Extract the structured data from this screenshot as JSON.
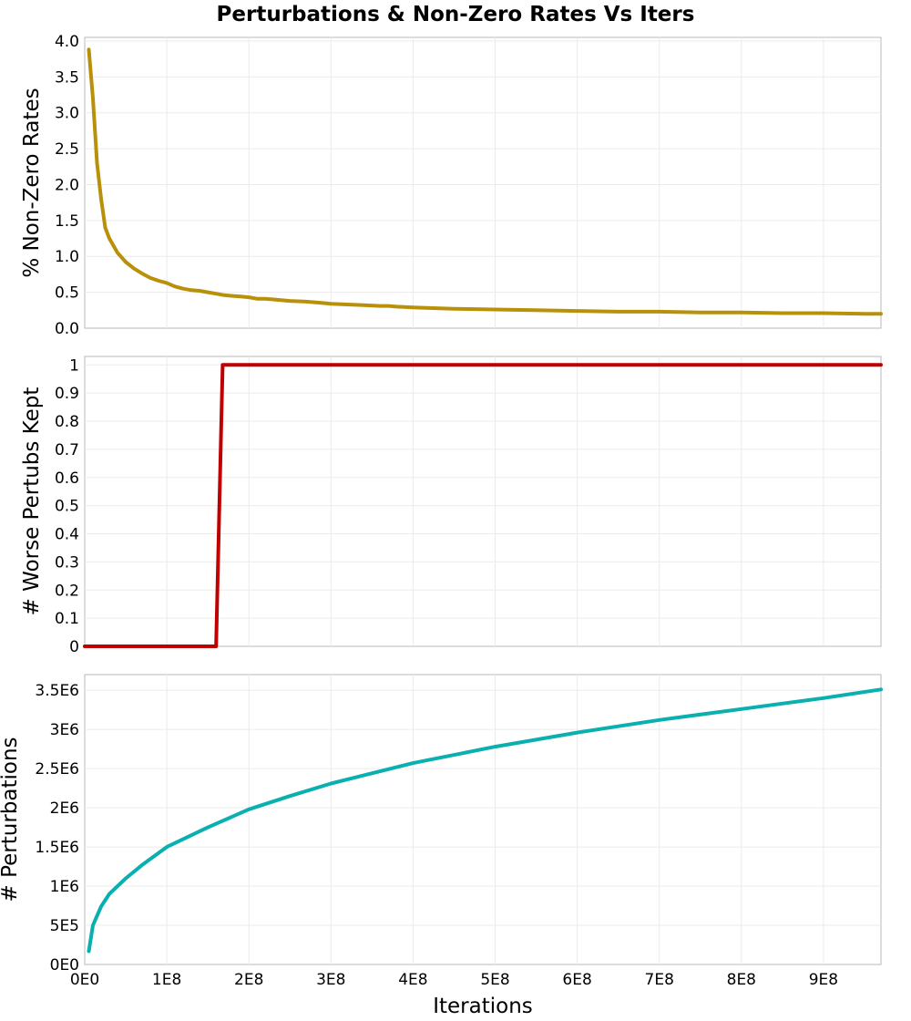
{
  "chart_data": {
    "type": "line",
    "title": "Perturbations & Non-Zero Rates Vs Iters",
    "shared_x": {
      "label": "Iterations",
      "range": [
        0,
        970000000
      ],
      "ticks": [
        0,
        100000000,
        200000000,
        300000000,
        400000000,
        500000000,
        600000000,
        700000000,
        800000000,
        900000000
      ],
      "tick_labels": [
        "0E0",
        "1E8",
        "2E8",
        "3E8",
        "4E8",
        "5E8",
        "6E8",
        "7E8",
        "8E8",
        "9E8"
      ]
    },
    "panels": [
      {
        "ylabel": "% Non-Zero Rates",
        "ylim": [
          0,
          4.05
        ],
        "yticks": [
          0,
          0.5,
          1.0,
          1.5,
          2.0,
          2.5,
          3.0,
          3.5,
          4.0
        ],
        "ytick_labels": [
          "0.0",
          "0.5",
          "1.0",
          "1.5",
          "2.0",
          "2.5",
          "3.0",
          "3.5",
          "4.0"
        ],
        "color": "#b8900a",
        "x": [
          5000000,
          10000000,
          15000000,
          20000000,
          25000000,
          30000000,
          40000000,
          50000000,
          60000000,
          70000000,
          80000000,
          90000000,
          100000000,
          110000000,
          120000000,
          130000000,
          140000000,
          150000000,
          160000000,
          170000000,
          180000000,
          190000000,
          200000000,
          210000000,
          220000000,
          230000000,
          250000000,
          270000000,
          280000000,
          290000000,
          300000000,
          320000000,
          340000000,
          360000000,
          370000000,
          380000000,
          400000000,
          420000000,
          450000000,
          500000000,
          550000000,
          600000000,
          650000000,
          700000000,
          750000000,
          800000000,
          850000000,
          900000000,
          950000000,
          970000000
        ],
        "values": [
          3.88,
          3.2,
          2.3,
          1.8,
          1.4,
          1.25,
          1.05,
          0.92,
          0.83,
          0.76,
          0.7,
          0.66,
          0.63,
          0.58,
          0.55,
          0.53,
          0.52,
          0.5,
          0.48,
          0.46,
          0.45,
          0.44,
          0.43,
          0.41,
          0.41,
          0.4,
          0.38,
          0.37,
          0.36,
          0.35,
          0.34,
          0.33,
          0.32,
          0.31,
          0.31,
          0.3,
          0.29,
          0.28,
          0.27,
          0.26,
          0.25,
          0.24,
          0.23,
          0.23,
          0.22,
          0.22,
          0.21,
          0.21,
          0.2,
          0.2
        ]
      },
      {
        "ylabel": "# Worse Pertubs Kept",
        "ylim": [
          0,
          1.03
        ],
        "yticks": [
          0,
          0.1,
          0.2,
          0.3,
          0.4,
          0.5,
          0.6,
          0.7,
          0.8,
          0.9,
          1
        ],
        "ytick_labels": [
          "0",
          "0.1",
          "0.2",
          "0.3",
          "0.4",
          "0.5",
          "0.6",
          "0.7",
          "0.8",
          "0.9",
          "1"
        ],
        "color": "#c00000",
        "x": [
          0,
          160000000,
          168000000,
          970000000
        ],
        "values": [
          0,
          0,
          1,
          1
        ]
      },
      {
        "ylabel": "# Perturbations",
        "ylim": [
          0,
          3700000.0
        ],
        "yticks": [
          0,
          500000,
          1000000,
          1500000,
          2000000,
          2500000,
          3000000,
          3500000
        ],
        "ytick_labels": [
          "0E0",
          "5E5",
          "1E6",
          "1.5E6",
          "2E6",
          "2.5E6",
          "3E6",
          "3.5E6"
        ],
        "color": "#0aafaf",
        "x": [
          5000000,
          10000000,
          15000000,
          20000000,
          30000000,
          40000000,
          50000000,
          70000000,
          100000000,
          150000000,
          200000000,
          250000000,
          300000000,
          400000000,
          500000000,
          600000000,
          700000000,
          800000000,
          900000000,
          970000000
        ],
        "values": [
          170000,
          500000,
          620000,
          740000,
          900000,
          1000000,
          1100000,
          1270000,
          1500000,
          1750000,
          1980000,
          2150000,
          2310000,
          2570000,
          2780000,
          2960000,
          3120000,
          3260000,
          3400000,
          3510000
        ]
      }
    ],
    "grid": true,
    "legend": "none"
  }
}
